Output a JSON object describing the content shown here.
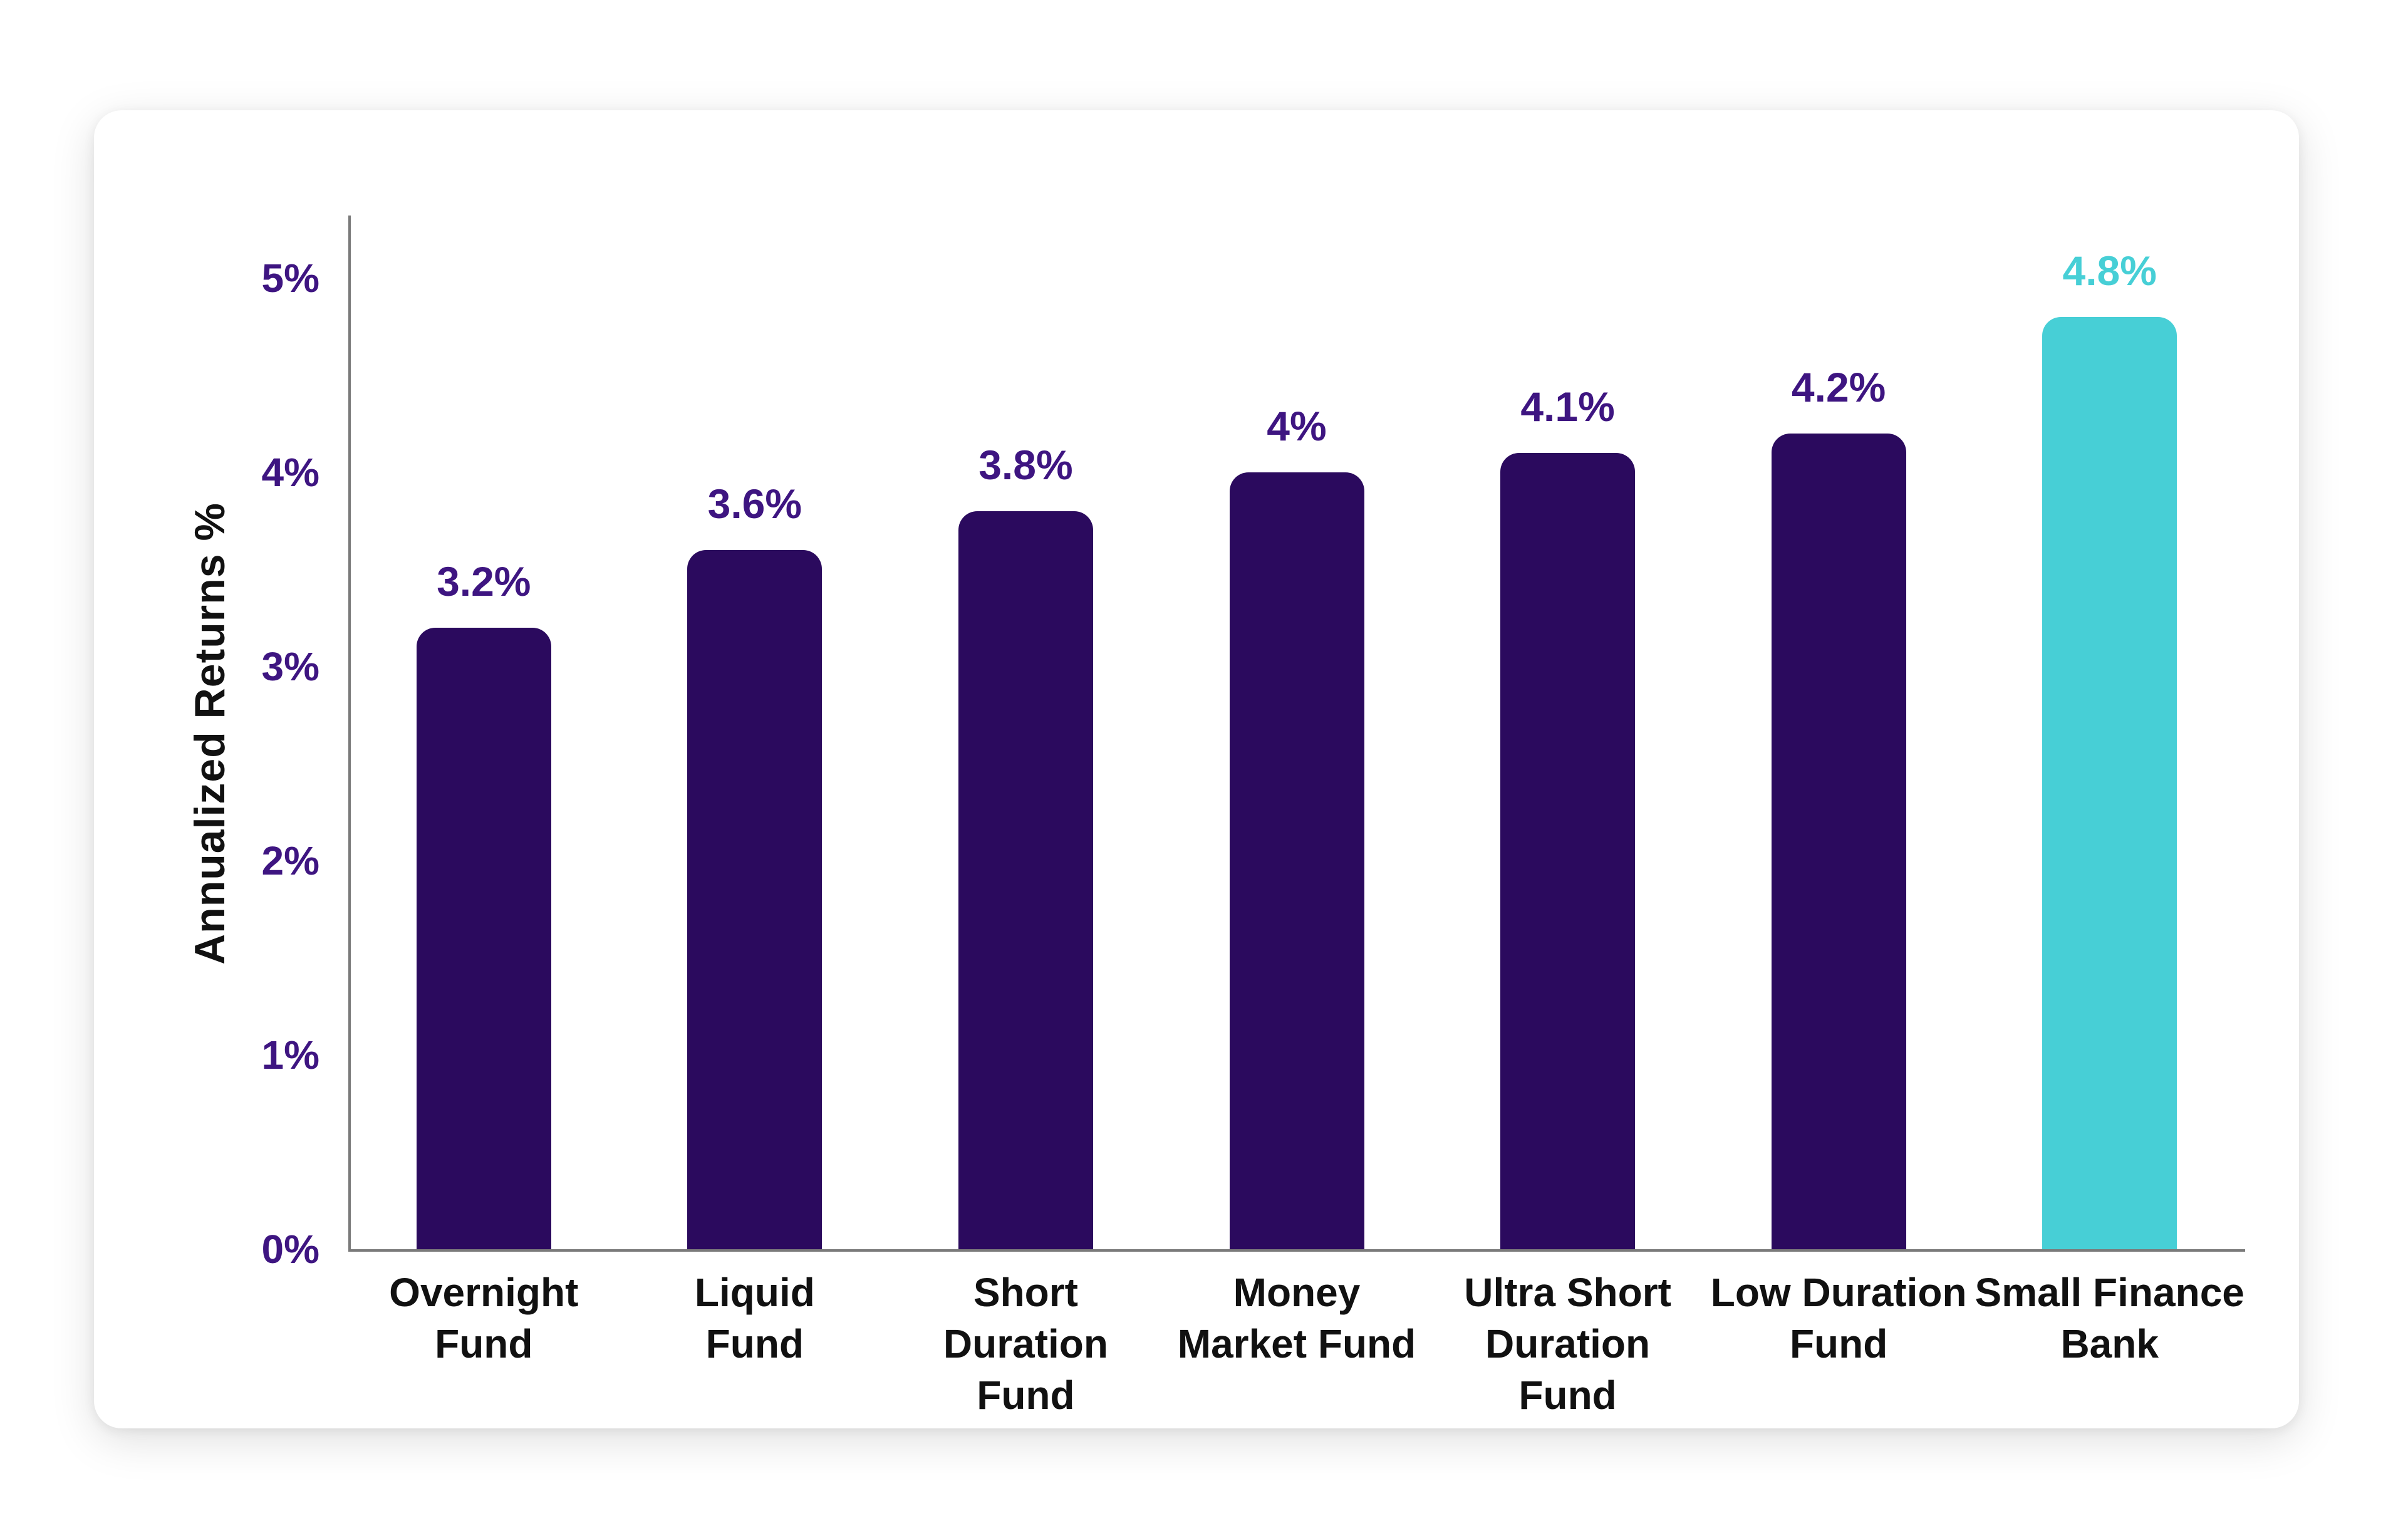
{
  "y_axis_title": "Annualized Returns %",
  "chart_data": {
    "type": "bar",
    "title": "",
    "xlabel": "",
    "ylabel": "Annualized Returns %",
    "ylim": [
      0,
      5
    ],
    "grid": false,
    "legend": false,
    "yticks": [
      "0%",
      "1%",
      "2%",
      "3%",
      "4%",
      "5%"
    ],
    "categories": [
      "Overnight Fund",
      "Liquid Fund",
      "Short Duration Fund",
      "Money Market Fund",
      "Ultra Short Duration Fund",
      "Low Duration Fund",
      "Small Finance Bank"
    ],
    "category_lines": [
      [
        "Overnight",
        "Fund"
      ],
      [
        "Liquid",
        "Fund"
      ],
      [
        "Short",
        "Duration",
        "Fund"
      ],
      [
        "Money",
        "Market Fund"
      ],
      [
        "Ultra Short",
        "Duration",
        "Fund"
      ],
      [
        "Low Duration",
        "Fund"
      ],
      [
        "Small Finance",
        "Bank"
      ]
    ],
    "values": [
      3.2,
      3.6,
      3.8,
      4,
      4.1,
      4.2,
      4.8
    ],
    "value_labels": [
      "3.2%",
      "3.6%",
      "3.8%",
      "4%",
      "4.1%",
      "4.2%",
      "4.8%"
    ],
    "bar_colors": [
      "#2B0A5E",
      "#2B0A5E",
      "#2B0A5E",
      "#2B0A5E",
      "#2B0A5E",
      "#2B0A5E",
      "#47CFD6"
    ],
    "value_label_colors": [
      "#3E1581",
      "#3E1581",
      "#3E1581",
      "#3E1581",
      "#3E1581",
      "#3E1581",
      "#47CFD6"
    ],
    "colors": {
      "bar_default": "#2B0A5E",
      "bar_highlight": "#47CFD6",
      "tick_label": "#3E1581",
      "axis_line": "#7A7A7A",
      "category_label": "#111111",
      "axis_title": "#111111",
      "card_background": "#FFFFFF",
      "page_background": "#FFFFFF"
    }
  }
}
